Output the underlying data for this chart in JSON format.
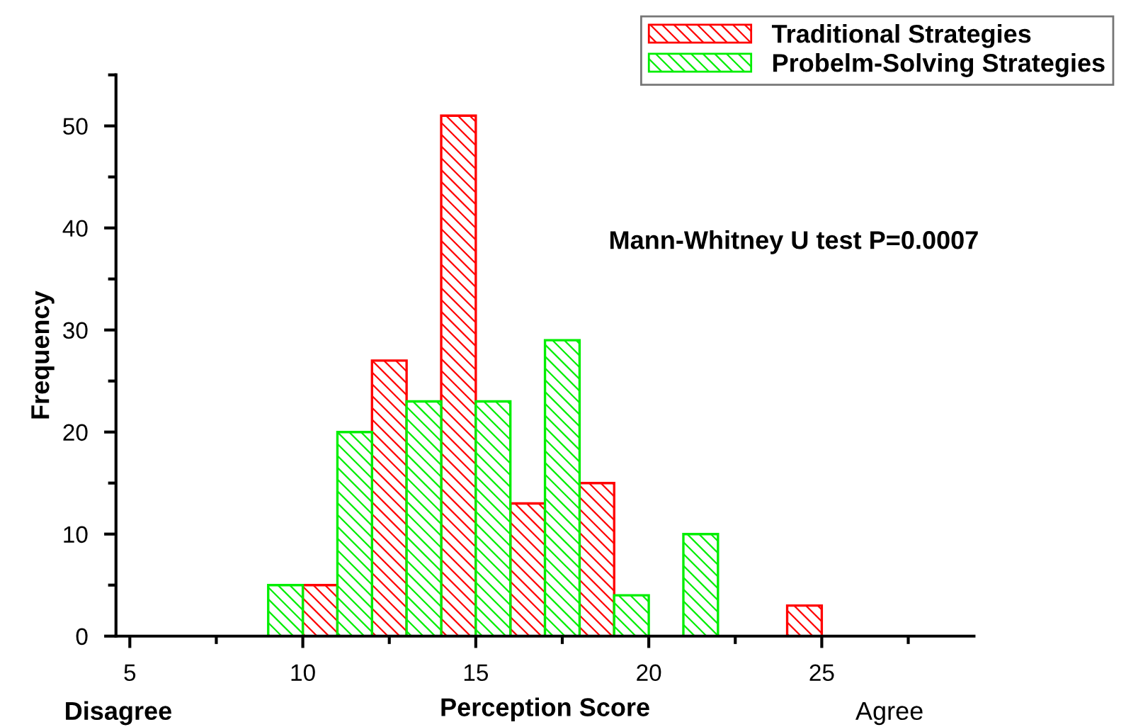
{
  "chart_data": {
    "type": "histogram",
    "xlabel": "Perception Score",
    "ylabel": "Frequency",
    "bins": [
      9,
      10,
      11,
      12,
      13,
      14,
      15,
      16,
      17,
      18,
      19,
      20,
      21,
      22,
      23,
      24,
      25
    ],
    "series": [
      {
        "name": "Traditional Strategies",
        "color": "#ff0000",
        "values": [
          null,
          5,
          null,
          27,
          null,
          51,
          null,
          13,
          null,
          15,
          null,
          null,
          null,
          null,
          null,
          3
        ]
      },
      {
        "name": "Probelm-Solving Strategies",
        "color": "#00ee00",
        "values": [
          5,
          null,
          20,
          null,
          23,
          null,
          23,
          null,
          29,
          null,
          4,
          null,
          10,
          null,
          null,
          null
        ]
      }
    ],
    "xlim": [
      4.6,
      29.4
    ],
    "xticks": [
      5,
      10,
      15,
      20,
      25
    ],
    "ylim": [
      0,
      55
    ],
    "yticks": [
      0,
      10,
      20,
      30,
      40,
      50
    ],
    "annotations": [
      "Mann-Whitney U test P=0.0007",
      "Disagree",
      "Agree"
    ],
    "legend": "top right",
    "grid": false
  }
}
